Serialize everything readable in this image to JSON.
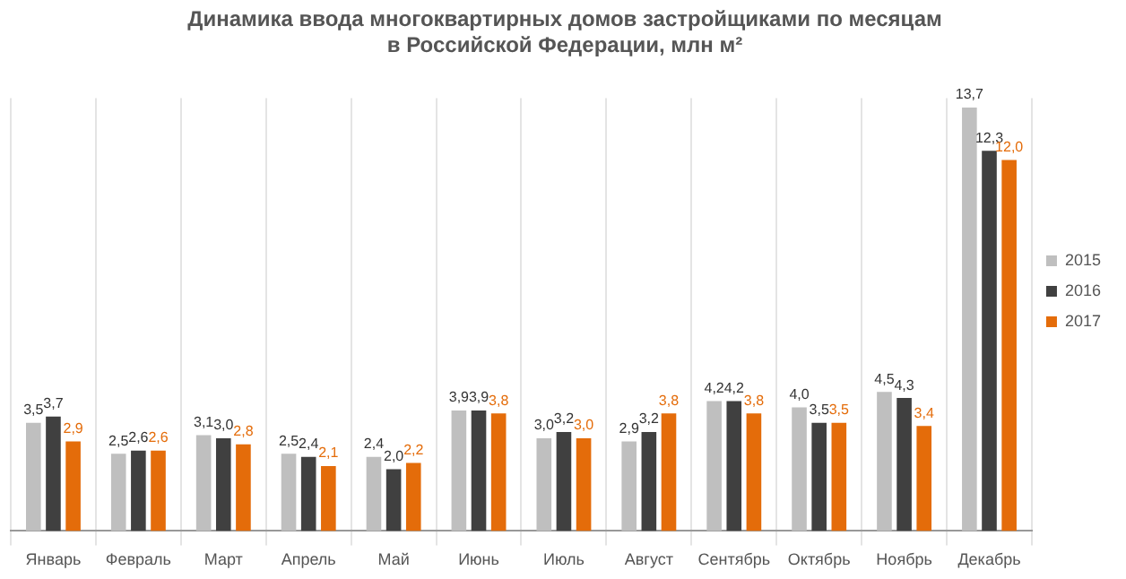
{
  "chart_data": {
    "type": "bar",
    "title": "Динамика ввода многоквартирных домов застройщиками по месяцам\nв Российской Федерации, млн м²",
    "categories": [
      "Январь",
      "Февраль",
      "Март",
      "Апрель",
      "Май",
      "Июнь",
      "Июль",
      "Август",
      "Сентябрь",
      "Октябрь",
      "Ноябрь",
      "Декабрь"
    ],
    "series": [
      {
        "name": "2015",
        "color": "#bfbfbf",
        "values": [
          3.5,
          2.5,
          3.1,
          2.5,
          2.4,
          3.9,
          3.0,
          2.9,
          4.2,
          4.0,
          4.5,
          13.7
        ],
        "value_labels": [
          "3,5",
          "2,5",
          "3,1",
          "2,5",
          "2,4",
          "3,9",
          "3,0",
          "2,9",
          "4,2",
          "4,0",
          "4,5",
          "13,7"
        ]
      },
      {
        "name": "2016",
        "color": "#404040",
        "values": [
          3.7,
          2.6,
          3.0,
          2.4,
          2.0,
          3.9,
          3.2,
          3.2,
          4.2,
          3.5,
          4.3,
          12.3
        ],
        "value_labels": [
          "3,7",
          "2,6",
          "3,0",
          "2,4",
          "2,0",
          "3,9",
          "3,2",
          "3,2",
          "4,2",
          "3,5",
          "4,3",
          "12,3"
        ]
      },
      {
        "name": "2017",
        "color": "#e46c0a",
        "values": [
          2.9,
          2.6,
          2.8,
          2.1,
          2.2,
          3.8,
          3.0,
          3.8,
          3.8,
          3.5,
          3.4,
          12.0
        ],
        "value_labels": [
          "2,9",
          "2,6",
          "2,8",
          "2,1",
          "2,2",
          "3,8",
          "3,0",
          "3,8",
          "3,8",
          "3,5",
          "3,4",
          "12,0"
        ]
      }
    ],
    "grid": "x",
    "legend": "right"
  }
}
